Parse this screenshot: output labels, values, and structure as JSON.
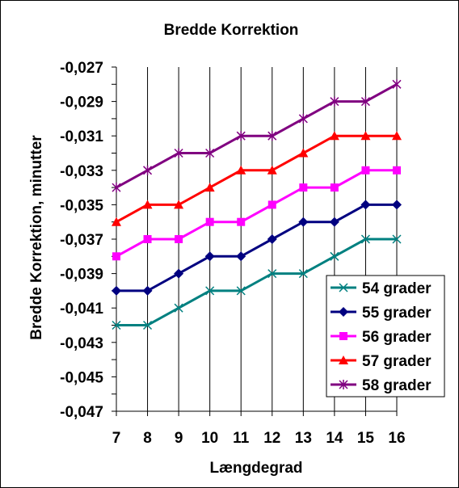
{
  "chart_data": {
    "type": "line",
    "title": "Bredde Korrektion",
    "xlabel": "Længdegrad",
    "ylabel": "Bredde Korrektion, minutter",
    "x": [
      7,
      8,
      9,
      10,
      11,
      12,
      13,
      14,
      15,
      16
    ],
    "x_tick_labels": [
      "7",
      "8",
      "9",
      "10",
      "11",
      "12",
      "13",
      "14",
      "15",
      "16"
    ],
    "ylim": [
      -0.047,
      -0.027
    ],
    "y_tick_labels": [
      "-0,027",
      "-0,029",
      "-0,031",
      "-0,033",
      "-0,035",
      "-0,037",
      "-0,039",
      "-0,041",
      "-0,043",
      "-0,045",
      "-0,047"
    ],
    "y_major_step": 0.002,
    "y_minor_step": 0.001,
    "grid": {
      "vertical": true,
      "horizontal": false
    },
    "legend_position": "bottom-right",
    "series": [
      {
        "name": "54 grader",
        "color": "#008080",
        "marker": "x",
        "values": [
          -0.042,
          -0.042,
          -0.041,
          -0.04,
          -0.04,
          -0.039,
          -0.039,
          -0.038,
          -0.037,
          -0.037
        ]
      },
      {
        "name": "55 grader",
        "color": "#000080",
        "marker": "diamond",
        "values": [
          -0.04,
          -0.04,
          -0.039,
          -0.038,
          -0.038,
          -0.037,
          -0.036,
          -0.036,
          -0.035,
          -0.035
        ]
      },
      {
        "name": "56 grader",
        "color": "#ff00ff",
        "marker": "square",
        "values": [
          -0.038,
          -0.037,
          -0.037,
          -0.036,
          -0.036,
          -0.035,
          -0.034,
          -0.034,
          -0.033,
          -0.033
        ]
      },
      {
        "name": "57 grader",
        "color": "#ff0000",
        "marker": "triangle",
        "values": [
          -0.036,
          -0.035,
          -0.035,
          -0.034,
          -0.033,
          -0.033,
          -0.032,
          -0.031,
          -0.031,
          -0.031
        ]
      },
      {
        "name": "58 grader",
        "color": "#800080",
        "marker": "star",
        "values": [
          -0.034,
          -0.033,
          -0.032,
          -0.032,
          -0.031,
          -0.031,
          -0.03,
          -0.029,
          -0.029,
          -0.028
        ]
      }
    ]
  }
}
